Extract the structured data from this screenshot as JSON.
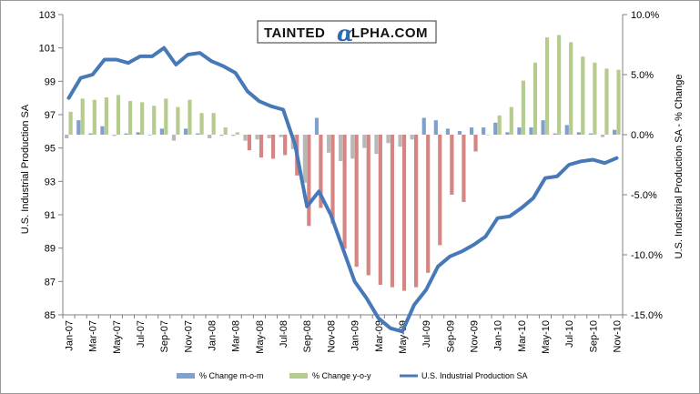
{
  "colors": {
    "mom": "#7f9fcf",
    "mom_neg": "#b8b8b8",
    "yoy": "#b5cc8e",
    "yoy_neg": "#d58582",
    "line": "#4779b8",
    "axis": "#808080"
  },
  "logo": {
    "prefix": "TAINTED",
    "alpha": "α",
    "suffix": "LPHA.COM"
  },
  "chart_data": {
    "type": "bar+line",
    "title": "",
    "y_left_label": "U.S. Industrial Production SA",
    "y_right_label": "U.S. Industrial Production SA - % Change",
    "y_left_range": [
      85,
      103
    ],
    "y_left_ticks": [
      "85",
      "87",
      "89",
      "91",
      "93",
      "95",
      "97",
      "99",
      "101",
      "103"
    ],
    "y_right_range": [
      -15,
      10
    ],
    "y_right_ticks": [
      "-15.0%",
      "-10.0%",
      "-5.0%",
      "0.0%",
      "5.0%",
      "10.0%"
    ],
    "categories": [
      "Jan-07",
      "Feb-07",
      "Mar-07",
      "Apr-07",
      "May-07",
      "Jun-07",
      "Jul-07",
      "Aug-07",
      "Sep-07",
      "Oct-07",
      "Nov-07",
      "Dec-07",
      "Jan-08",
      "Feb-08",
      "Mar-08",
      "Apr-08",
      "May-08",
      "Jun-08",
      "Jul-08",
      "Aug-08",
      "Sep-08",
      "Oct-08",
      "Nov-08",
      "Dec-08",
      "Jan-09",
      "Feb-09",
      "Mar-09",
      "Apr-09",
      "May-09",
      "Jun-09",
      "Jul-09",
      "Aug-09",
      "Sep-09",
      "Oct-09",
      "Nov-09",
      "Dec-09",
      "Jan-10",
      "Feb-10",
      "Mar-10",
      "Apr-10",
      "May-10",
      "Jun-10",
      "Jul-10",
      "Aug-10",
      "Sep-10",
      "Oct-10",
      "Nov-10"
    ],
    "x_tick_labels": [
      "Jan-07",
      "Mar-07",
      "May-07",
      "Jul-07",
      "Sep-07",
      "Nov-07",
      "Jan-08",
      "Mar-08",
      "May-08",
      "Jul-08",
      "Sep-08",
      "Nov-08",
      "Jan-09",
      "Mar-09",
      "May-09",
      "Jul-09",
      "Sep-09",
      "Nov-09",
      "Jan-10",
      "Mar-10",
      "May-10",
      "Jul-10",
      "Sep-10",
      "Nov-10"
    ],
    "series": [
      {
        "name": "% Change m-o-m",
        "axis": "right",
        "kind": "bar",
        "values": [
          -0.3,
          1.2,
          0.1,
          0.7,
          -0.1,
          0.1,
          0.2,
          0,
          0.5,
          -0.5,
          0.5,
          0.1,
          -0.3,
          -0.1,
          -0.1,
          -0.5,
          -0.4,
          -0.3,
          -0.2,
          -1.2,
          -4.0,
          1.4,
          -1.5,
          -2.2,
          -2.0,
          -1.1,
          -1.6,
          -0.7,
          -1.0,
          -0.4,
          1.4,
          1.2,
          0.5,
          0.3,
          0.6,
          0.6,
          1.0,
          0.2,
          0.6,
          0.6,
          1.2,
          0.1,
          0.8,
          0.2,
          0.1,
          -0.2,
          0.4
        ]
      },
      {
        "name": "% Change y-o-y",
        "axis": "right",
        "kind": "bar",
        "values": [
          1.9,
          3.0,
          2.9,
          3.1,
          3.3,
          2.8,
          2.7,
          2.4,
          3.0,
          2.3,
          2.9,
          1.8,
          1.8,
          0.6,
          0.2,
          -1.3,
          -1.9,
          -2.0,
          -1.7,
          -3.4,
          -7.6,
          -6.1,
          -7.4,
          -9.5,
          -11.0,
          -11.7,
          -12.5,
          -12.7,
          -13.0,
          -12.7,
          -11.5,
          -9.2,
          -5.0,
          -5.6,
          -1.4,
          0,
          1.6,
          2.3,
          4.5,
          6.0,
          8.1,
          8.3,
          7.7,
          6.5,
          6.0,
          5.5,
          5.4
        ]
      },
      {
        "name": "U.S. Industrial Production SA",
        "axis": "left",
        "kind": "line",
        "values": [
          98.0,
          99.2,
          99.4,
          100.3,
          100.3,
          100.1,
          100.5,
          100.5,
          101.0,
          100.0,
          100.6,
          100.7,
          100.2,
          99.9,
          99.5,
          98.4,
          97.8,
          97.5,
          97.3,
          95.2,
          91.5,
          92.4,
          91.0,
          89.0,
          87.0,
          86.0,
          84.8,
          84.2,
          84.0,
          85.6,
          86.5,
          87.9,
          88.5,
          88.8,
          89.2,
          89.7,
          90.8,
          90.9,
          91.4,
          92.0,
          93.2,
          93.3,
          94.0,
          94.2,
          94.3,
          94.1,
          94.4
        ]
      }
    ],
    "legend": [
      "% Change m-o-m",
      "% Change y-o-y",
      "U.S. Industrial Production SA"
    ],
    "legend_position": "bottom"
  }
}
